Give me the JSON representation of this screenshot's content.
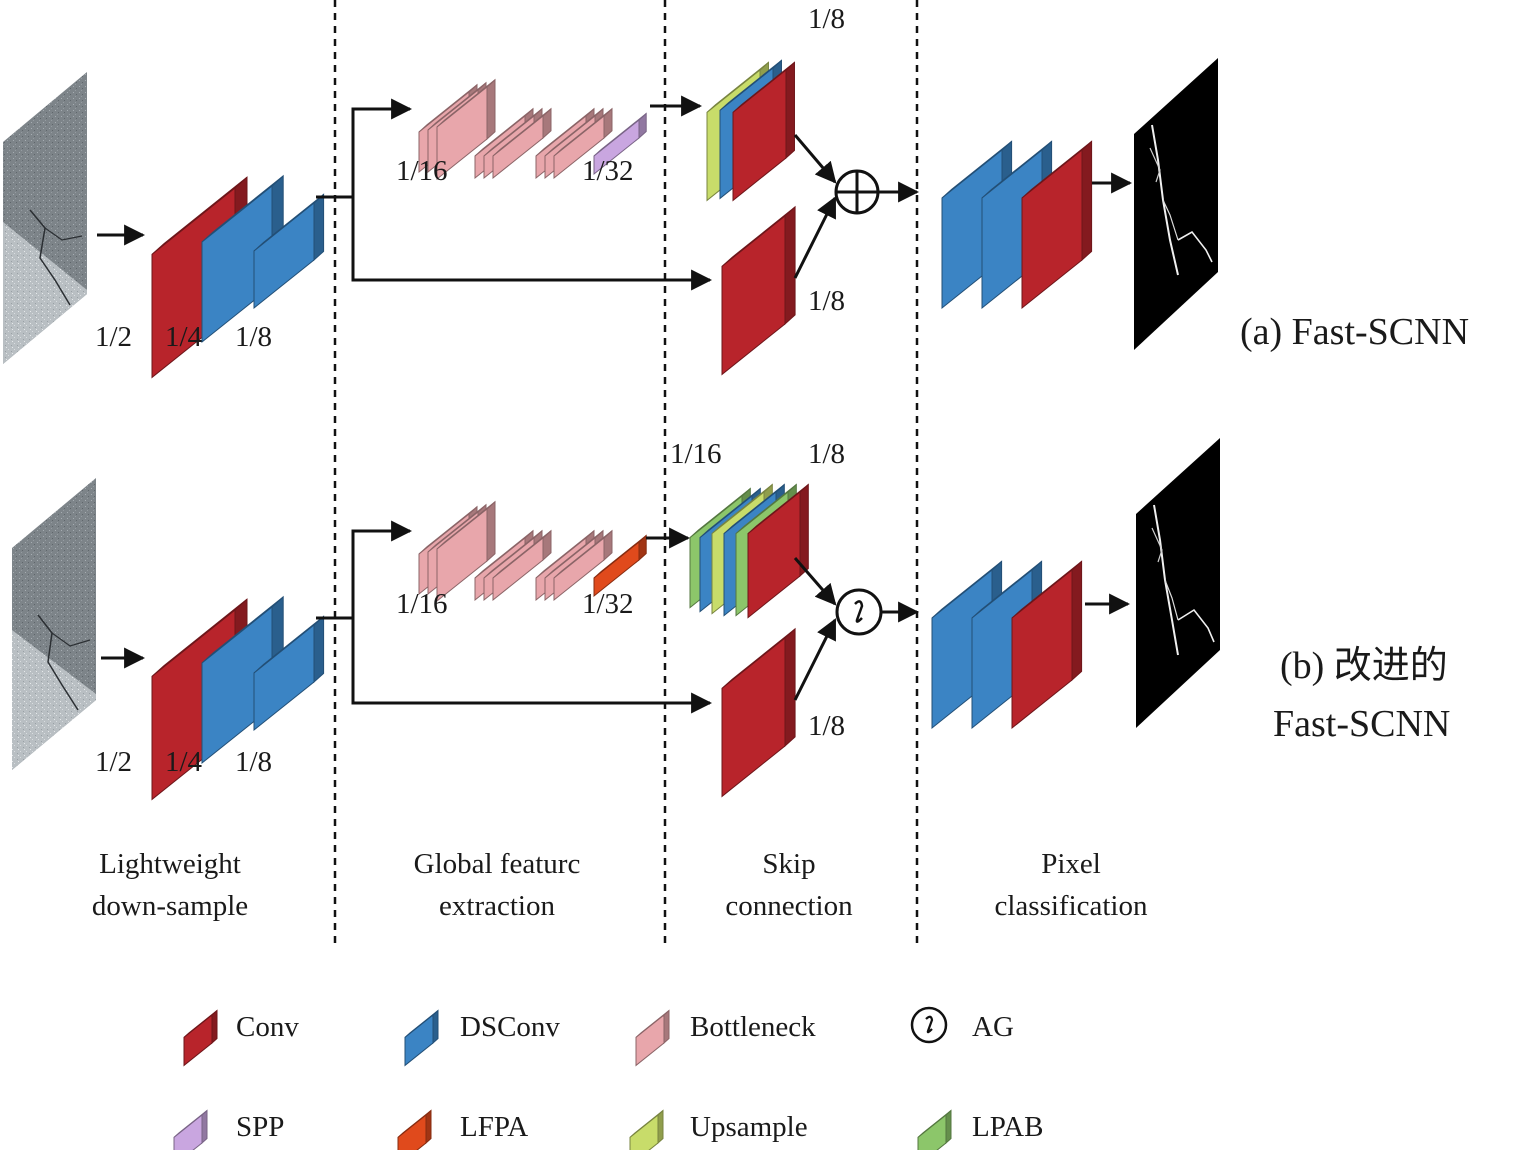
{
  "colors": {
    "conv": "#b8242b",
    "dsconv": "#3b84c4",
    "bottleneck": "#e8a6ab",
    "spp": "#c9a6e0",
    "lfpa": "#e04a1c",
    "upsample": "#c8dc6a",
    "lpab": "#8cc66a"
  },
  "panel_a": {
    "title": "(a) Fast-SCNN",
    "downsample_scales": [
      "1/2",
      "1/4",
      "1/8"
    ],
    "gfe_scale_start": "1/16",
    "gfe_scale_end": "1/32",
    "skip_scale_top": "1/8",
    "skip_scale_bottom": "1/8",
    "fusion_icon": "add-circle-icon"
  },
  "panel_b": {
    "title_line1": "(b) 改进的",
    "title_line2": "Fast-SCNN",
    "downsample_scales": [
      "1/2",
      "1/4",
      "1/8"
    ],
    "gfe_scale_start": "1/16",
    "gfe_scale_end": "1/32",
    "skip_scale_left": "1/16",
    "skip_scale_top": "1/8",
    "skip_scale_bottom": "1/8",
    "fusion_icon": "attention-gate-icon"
  },
  "stages": [
    {
      "line1": "Lightweight",
      "line2": "down-sample"
    },
    {
      "line1": "Global featurc",
      "line2": "extraction"
    },
    {
      "line1": "Skip",
      "line2": "connection"
    },
    {
      "line1": "Pixel",
      "line2": "classification"
    }
  ],
  "legend": [
    {
      "label": "Conv",
      "icon": "conv-block-icon"
    },
    {
      "label": "DSConv",
      "icon": "dsconv-block-icon"
    },
    {
      "label": "Bottleneck",
      "icon": "bottleneck-block-icon"
    },
    {
      "label": "AG",
      "icon": "attention-gate-icon"
    },
    {
      "label": "SPP",
      "icon": "spp-block-icon"
    },
    {
      "label": "LFPA",
      "icon": "lfpa-block-icon"
    },
    {
      "label": "Upsample",
      "icon": "upsample-block-icon"
    },
    {
      "label": "LPAB",
      "icon": "lpab-block-icon"
    }
  ]
}
